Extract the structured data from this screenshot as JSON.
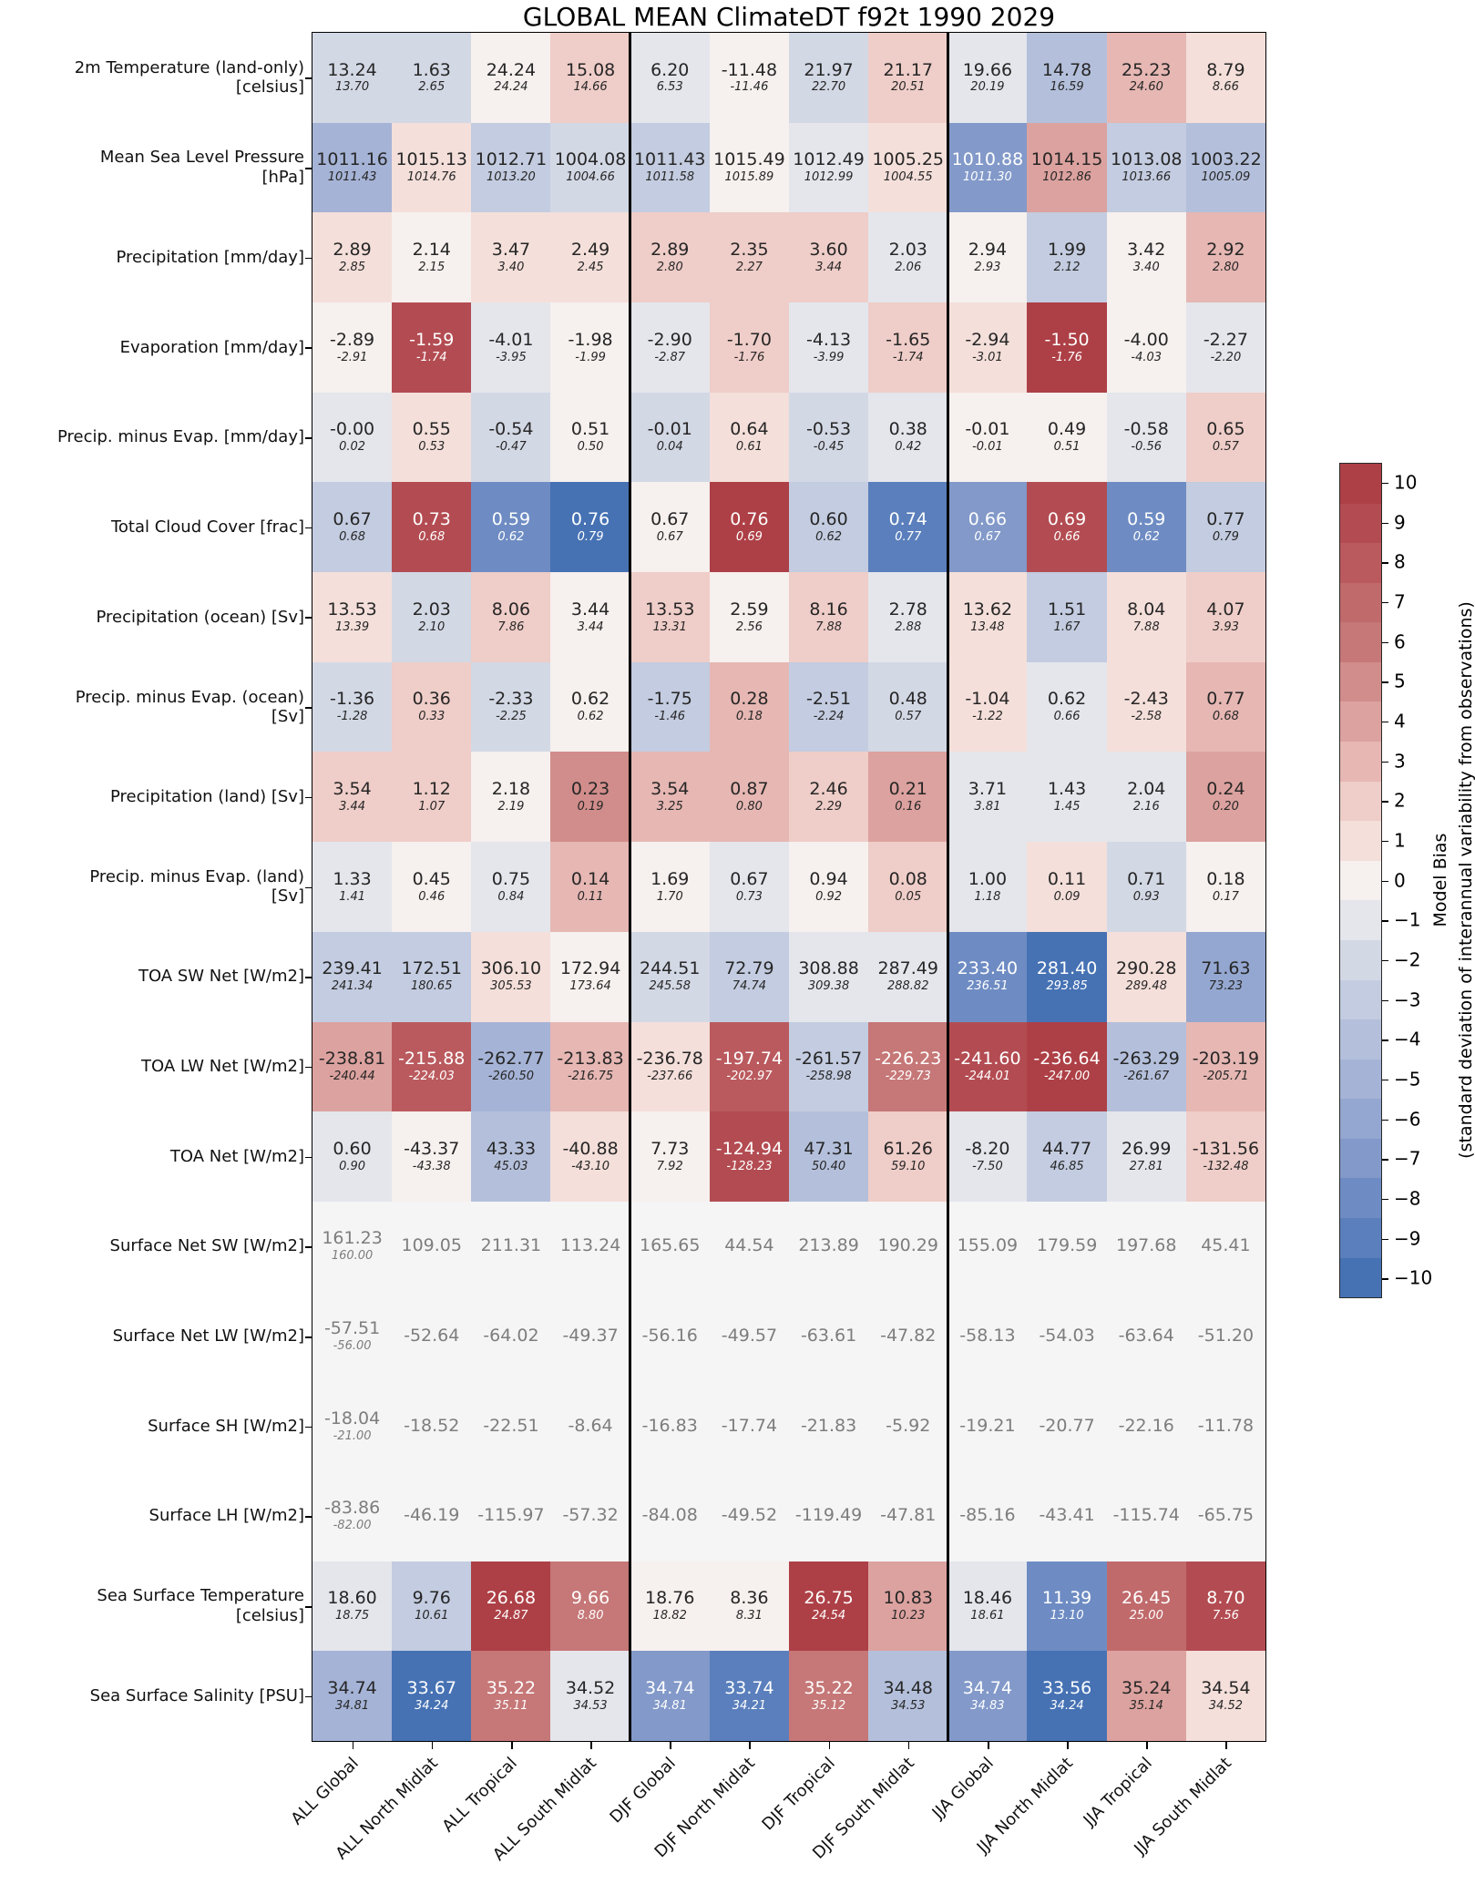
{
  "chart_data": {
    "type": "heatmap",
    "title": "GLOBAL MEAN ClimateDT f92t 1990 2029",
    "x_labels": [
      "ALL Global",
      "ALL North Midlat",
      "ALL Tropical",
      "ALL South Midlat",
      "DJF Global",
      "DJF North Midlat",
      "DJF Tropical",
      "DJF South Midlat",
      "JJA Global",
      "JJA North Midlat",
      "JJA Tropical",
      "JJA South Midlat"
    ],
    "group_separators_after_column": [
      4,
      8
    ],
    "cell_value_note": "v = model mean, o = observation mean (italic), b = color level for model bias in std-dev units (null = no bias shading)",
    "rows": [
      {
        "label": "2m Temperature (land-only)\n[celsius]",
        "v": [
          "13.24",
          "1.63",
          "24.24",
          "15.08",
          "6.20",
          "-11.48",
          "21.97",
          "21.17",
          "19.66",
          "14.78",
          "25.23",
          "8.79"
        ],
        "o": [
          "13.70",
          "2.65",
          "24.24",
          "14.66",
          "6.53",
          "-11.46",
          "22.70",
          "20.51",
          "20.19",
          "16.59",
          "24.60",
          "8.66"
        ],
        "b": [
          -2,
          -2,
          0,
          2,
          -1,
          0,
          -2,
          2,
          -1,
          -4,
          3,
          1
        ]
      },
      {
        "label": "Mean Sea Level Pressure\n[hPa]",
        "v": [
          "1011.16",
          "1015.13",
          "1012.71",
          "1004.08",
          "1011.43",
          "1015.49",
          "1012.49",
          "1005.25",
          "1010.88",
          "1014.15",
          "1013.08",
          "1003.22"
        ],
        "o": [
          "1011.43",
          "1014.76",
          "1013.20",
          "1004.66",
          "1011.58",
          "1015.89",
          "1012.99",
          "1004.55",
          "1011.30",
          "1012.86",
          "1013.66",
          "1005.09"
        ],
        "b": [
          -5,
          1,
          -3,
          -2,
          -3,
          0,
          -1,
          1,
          -7,
          4,
          -3,
          -4
        ]
      },
      {
        "label": "Precipitation [mm/day]",
        "v": [
          "2.89",
          "2.14",
          "3.47",
          "2.49",
          "2.89",
          "2.35",
          "3.60",
          "2.03",
          "2.94",
          "1.99",
          "3.42",
          "2.92"
        ],
        "o": [
          "2.85",
          "2.15",
          "3.40",
          "2.45",
          "2.80",
          "2.27",
          "3.44",
          "2.06",
          "2.93",
          "2.12",
          "3.40",
          "2.80"
        ],
        "b": [
          1,
          0,
          1,
          1,
          2,
          2,
          2,
          -1,
          0,
          -3,
          0,
          3
        ]
      },
      {
        "label": "Evaporation [mm/day]",
        "v": [
          "-2.89",
          "-1.59",
          "-4.01",
          "-1.98",
          "-2.90",
          "-1.70",
          "-4.13",
          "-1.65",
          "-2.94",
          "-1.50",
          "-4.00",
          "-2.27"
        ],
        "o": [
          "-2.91",
          "-1.74",
          "-3.95",
          "-1.99",
          "-2.87",
          "-1.76",
          "-3.99",
          "-1.74",
          "-3.01",
          "-1.76",
          "-4.03",
          "-2.20"
        ],
        "b": [
          0,
          9,
          -1,
          0,
          -1,
          2,
          -1,
          2,
          1,
          10,
          0,
          -1
        ]
      },
      {
        "label": "Precip. minus Evap. [mm/day]",
        "v": [
          "-0.00",
          "0.55",
          "-0.54",
          "0.51",
          "-0.01",
          "0.64",
          "-0.53",
          "0.38",
          "-0.01",
          "0.49",
          "-0.58",
          "0.65"
        ],
        "o": [
          "0.02",
          "0.53",
          "-0.47",
          "0.50",
          "0.04",
          "0.61",
          "-0.45",
          "0.42",
          "-0.01",
          "0.51",
          "-0.56",
          "0.57"
        ],
        "b": [
          -1,
          1,
          -2,
          0,
          -2,
          1,
          -2,
          -1,
          0,
          0,
          -1,
          2
        ]
      },
      {
        "label": "Total Cloud Cover [frac]",
        "v": [
          "0.67",
          "0.73",
          "0.59",
          "0.76",
          "0.67",
          "0.76",
          "0.60",
          "0.74",
          "0.66",
          "0.69",
          "0.59",
          "0.77"
        ],
        "o": [
          "0.68",
          "0.68",
          "0.62",
          "0.79",
          "0.67",
          "0.69",
          "0.62",
          "0.77",
          "0.67",
          "0.66",
          "0.62",
          "0.79"
        ],
        "b": [
          -3,
          9,
          -8,
          -10,
          0,
          10,
          -3,
          -9,
          -7,
          9,
          -8,
          -3
        ]
      },
      {
        "label": "Precipitation (ocean) [Sv]",
        "v": [
          "13.53",
          "2.03",
          "8.06",
          "3.44",
          "13.53",
          "2.59",
          "8.16",
          "2.78",
          "13.62",
          "1.51",
          "8.04",
          "4.07"
        ],
        "o": [
          "13.39",
          "2.10",
          "7.86",
          "3.44",
          "13.31",
          "2.56",
          "7.88",
          "2.88",
          "13.48",
          "1.67",
          "7.88",
          "3.93"
        ],
        "b": [
          1,
          -2,
          2,
          0,
          2,
          0,
          2,
          -1,
          1,
          -3,
          1,
          2
        ]
      },
      {
        "label": "Precip. minus Evap. (ocean)\n[Sv]",
        "v": [
          "-1.36",
          "0.36",
          "-2.33",
          "0.62",
          "-1.75",
          "0.28",
          "-2.51",
          "0.48",
          "-1.04",
          "0.62",
          "-2.43",
          "0.77"
        ],
        "o": [
          "-1.28",
          "0.33",
          "-2.25",
          "0.62",
          "-1.46",
          "0.18",
          "-2.24",
          "0.57",
          "-1.22",
          "0.66",
          "-2.58",
          "0.68"
        ],
        "b": [
          -2,
          2,
          -2,
          0,
          -3,
          3,
          -3,
          -2,
          1,
          -1,
          1,
          3
        ]
      },
      {
        "label": "Precipitation (land) [Sv]",
        "v": [
          "3.54",
          "1.12",
          "2.18",
          "0.23",
          "3.54",
          "0.87",
          "2.46",
          "0.21",
          "3.71",
          "1.43",
          "2.04",
          "0.24"
        ],
        "o": [
          "3.44",
          "1.07",
          "2.19",
          "0.19",
          "3.25",
          "0.80",
          "2.29",
          "0.16",
          "3.81",
          "1.45",
          "2.16",
          "0.20"
        ],
        "b": [
          2,
          2,
          0,
          5,
          3,
          3,
          2,
          4,
          -1,
          -1,
          -1,
          4
        ]
      },
      {
        "label": "Precip. minus Evap. (land)\n[Sv]",
        "v": [
          "1.33",
          "0.45",
          "0.75",
          "0.14",
          "1.69",
          "0.67",
          "0.94",
          "0.08",
          "1.00",
          "0.11",
          "0.71",
          "0.18"
        ],
        "o": [
          "1.41",
          "0.46",
          "0.84",
          "0.11",
          "1.70",
          "0.73",
          "0.92",
          "0.05",
          "1.18",
          "0.09",
          "0.93",
          "0.17"
        ],
        "b": [
          -1,
          0,
          -1,
          3,
          0,
          -1,
          0,
          2,
          -1,
          1,
          -2,
          0
        ]
      },
      {
        "label": "TOA SW Net [W/m2]",
        "v": [
          "239.41",
          "172.51",
          "306.10",
          "172.94",
          "244.51",
          "72.79",
          "308.88",
          "287.49",
          "233.40",
          "281.40",
          "290.28",
          "71.63"
        ],
        "o": [
          "241.34",
          "180.65",
          "305.53",
          "173.64",
          "245.58",
          "74.74",
          "309.38",
          "288.82",
          "236.51",
          "293.85",
          "289.48",
          "73.23"
        ],
        "b": [
          -3,
          -3,
          1,
          0,
          -2,
          -3,
          -1,
          -1,
          -8,
          -10,
          1,
          -6
        ]
      },
      {
        "label": "TOA LW Net [W/m2]",
        "v": [
          "-238.81",
          "-215.88",
          "-262.77",
          "-213.83",
          "-236.78",
          "-197.74",
          "-261.57",
          "-226.23",
          "-241.60",
          "-236.64",
          "-263.29",
          "-203.19"
        ],
        "o": [
          "-240.44",
          "-224.03",
          "-260.50",
          "-216.75",
          "-237.66",
          "-202.97",
          "-258.98",
          "-229.73",
          "-244.01",
          "-247.00",
          "-261.67",
          "-205.71"
        ],
        "b": [
          4,
          8,
          -5,
          3,
          1,
          8,
          -3,
          6,
          9,
          10,
          -4,
          3
        ]
      },
      {
        "label": "TOA Net [W/m2]",
        "v": [
          "0.60",
          "-43.37",
          "43.33",
          "-40.88",
          "7.73",
          "-124.94",
          "47.31",
          "61.26",
          "-8.20",
          "44.77",
          "26.99",
          "-131.56"
        ],
        "o": [
          "0.90",
          "-43.38",
          "45.03",
          "-43.10",
          "7.92",
          "-128.23",
          "50.40",
          "59.10",
          "-7.50",
          "46.85",
          "27.81",
          "-132.48"
        ],
        "b": [
          -1,
          0,
          -4,
          1,
          0,
          9,
          -4,
          2,
          -1,
          -3,
          -1,
          2
        ]
      },
      {
        "label": "Surface Net SW [W/m2]",
        "v": [
          "161.23",
          "109.05",
          "211.31",
          "113.24",
          "165.65",
          "44.54",
          "213.89",
          "190.29",
          "155.09",
          "179.59",
          "197.68",
          "45.41"
        ],
        "o": [
          "160.00",
          null,
          null,
          null,
          null,
          null,
          null,
          null,
          null,
          null,
          null,
          null
        ],
        "b": [
          null,
          null,
          null,
          null,
          null,
          null,
          null,
          null,
          null,
          null,
          null,
          null
        ]
      },
      {
        "label": "Surface Net LW [W/m2]",
        "v": [
          "-57.51",
          "-52.64",
          "-64.02",
          "-49.37",
          "-56.16",
          "-49.57",
          "-63.61",
          "-47.82",
          "-58.13",
          "-54.03",
          "-63.64",
          "-51.20"
        ],
        "o": [
          "-56.00",
          null,
          null,
          null,
          null,
          null,
          null,
          null,
          null,
          null,
          null,
          null
        ],
        "b": [
          null,
          null,
          null,
          null,
          null,
          null,
          null,
          null,
          null,
          null,
          null,
          null
        ]
      },
      {
        "label": "Surface SH [W/m2]",
        "v": [
          "-18.04",
          "-18.52",
          "-22.51",
          "-8.64",
          "-16.83",
          "-17.74",
          "-21.83",
          "-5.92",
          "-19.21",
          "-20.77",
          "-22.16",
          "-11.78"
        ],
        "o": [
          "-21.00",
          null,
          null,
          null,
          null,
          null,
          null,
          null,
          null,
          null,
          null,
          null
        ],
        "b": [
          null,
          null,
          null,
          null,
          null,
          null,
          null,
          null,
          null,
          null,
          null,
          null
        ]
      },
      {
        "label": "Surface LH [W/m2]",
        "v": [
          "-83.86",
          "-46.19",
          "-115.97",
          "-57.32",
          "-84.08",
          "-49.52",
          "-119.49",
          "-47.81",
          "-85.16",
          "-43.41",
          "-115.74",
          "-65.75"
        ],
        "o": [
          "-82.00",
          null,
          null,
          null,
          null,
          null,
          null,
          null,
          null,
          null,
          null,
          null
        ],
        "b": [
          null,
          null,
          null,
          null,
          null,
          null,
          null,
          null,
          null,
          null,
          null,
          null
        ]
      },
      {
        "label": "Sea Surface Temperature\n[celsius]",
        "v": [
          "18.60",
          "9.76",
          "26.68",
          "9.66",
          "18.76",
          "8.36",
          "26.75",
          "10.83",
          "18.46",
          "11.39",
          "26.45",
          "8.70"
        ],
        "o": [
          "18.75",
          "10.61",
          "24.87",
          "8.80",
          "18.82",
          "8.31",
          "24.54",
          "10.23",
          "18.61",
          "13.10",
          "25.00",
          "7.56"
        ],
        "b": [
          -1,
          -3,
          10,
          6,
          0,
          0,
          10,
          4,
          -1,
          -8,
          7,
          9
        ]
      },
      {
        "label": "Sea Surface Salinity [PSU]",
        "v": [
          "34.74",
          "33.67",
          "35.22",
          "34.52",
          "34.74",
          "33.74",
          "35.22",
          "34.48",
          "34.74",
          "33.56",
          "35.24",
          "34.54"
        ],
        "o": [
          "34.81",
          "34.24",
          "35.11",
          "34.53",
          "34.81",
          "34.21",
          "35.12",
          "34.53",
          "34.83",
          "34.24",
          "35.14",
          "34.52"
        ],
        "b": [
          -5,
          -10,
          6,
          -1,
          -7,
          -9,
          6,
          -4,
          -7,
          -10,
          4,
          1
        ]
      }
    ],
    "colorbar": {
      "label_line1": "Model Bias",
      "label_line2": "(standard deviation of interannual variability from observations)",
      "tick_max": 10,
      "tick_min": -10,
      "tick_step": 1
    }
  },
  "palette": {
    "levels_minus10_to_plus10": [
      "#4672b4",
      "#5a7fbc",
      "#6e8cc3",
      "#8299c9",
      "#94a7d0",
      "#a5b3d6",
      "#b4c0db",
      "#c3cce0",
      "#d3d8e5",
      "#e4e6ec",
      "#f6f0ee",
      "#f4dfda",
      "#efcdc8",
      "#e6b7b3",
      "#dca29f",
      "#d18d8b",
      "#c67777",
      "#c06a6c",
      "#ba5a5e",
      "#b34c52",
      "#ad4046"
    ],
    "masked_cell": "#f5f5f6",
    "masked_text": "#7d7d7d",
    "text_dark": "#262626",
    "text_light": "#ffffff"
  }
}
